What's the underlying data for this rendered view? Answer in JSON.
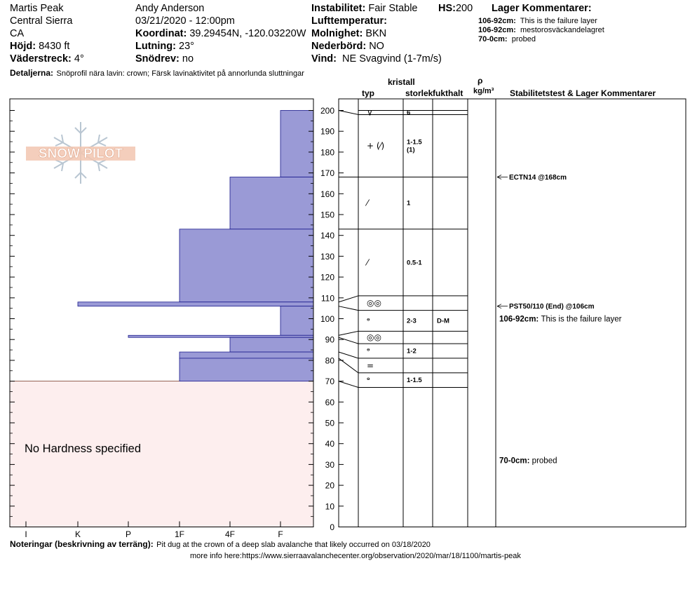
{
  "header": {
    "location": "Martis Peak",
    "range": "Central Sierra",
    "state": "CA",
    "elevation_label": "Höjd:",
    "elevation_value": "8430 ft",
    "aspect_label": "Väderstreck:",
    "aspect_value": "4°",
    "details_label": "Detaljerna:",
    "details_value": "Snöprofil nära lavin: crown; Färsk lavinaktivitet på annorlunda sluttningar",
    "observer": "Andy Anderson",
    "datetime": "03/21/2020 - 12:00pm",
    "coord_label": "Koordinat:",
    "coord_value": "39.29454N, -120.03220W",
    "slope_label": "Lutning:",
    "slope_value": "23°",
    "drift_label": "Snödrev:",
    "drift_value": "no",
    "instability_label": "Instabilitet:",
    "instability_value": "Fair Stable",
    "hs_label": "HS:",
    "hs_value": "200",
    "air_temp_label": "Lufttemperatur:",
    "sky_label": "Molnighet:",
    "sky_value": "BKN",
    "precip_label": "Nederbörd:",
    "precip_value": "NO",
    "wind_label": "Vind:",
    "wind_value": "NE Svagvind (1-7m/s)",
    "layer_comments_title": "Lager Kommentarer:",
    "layer_comments": [
      {
        "range": "106-92cm:",
        "text": "This is the failure layer"
      },
      {
        "range": "106-92cm:",
        "text": "mestorosväckandelagret"
      },
      {
        "range": "70-0cm:",
        "text": "probed"
      }
    ]
  },
  "logo_text": "SNOW PILOT",
  "columns": {
    "crystal": "kristall",
    "type": "typ",
    "size": "storlek",
    "moisture": "fukthalt",
    "rho": "ρ",
    "density_unit": "kg/m³",
    "stability": "Stabilitetstest & Lager Kommentarer"
  },
  "no_hardness_text": "No Hardness specified",
  "notes_label": "Noteringar (beskrivning av terräng):",
  "notes_value": "Pit dug at the crown of a deep slab avalanche that likely occurred on 03/18/2020",
  "more_info": "more info here:https://www.sierraavalanchecenter.org/observation/2020/mar/18/1100/martis-peak",
  "colors": {
    "hardness_fill": "#9a9ad6",
    "hardness_stroke": "#1a1a8c",
    "no_hardness_fill": "#fdeeee"
  },
  "chart_data": {
    "type": "bar",
    "orientation": "horizontal",
    "y_axis_label": "",
    "ylim": [
      0,
      200
    ],
    "y_ticks": [
      0,
      10,
      20,
      30,
      40,
      50,
      60,
      70,
      80,
      90,
      100,
      110,
      120,
      130,
      140,
      150,
      160,
      170,
      180,
      190,
      200
    ],
    "hardness_scale": [
      "I",
      "K",
      "P",
      "1F",
      "4F",
      "F"
    ],
    "hardness_layers": [
      {
        "top": 200,
        "bottom": 168,
        "hardness": "F"
      },
      {
        "top": 168,
        "bottom": 143,
        "hardness": "4F"
      },
      {
        "top": 143,
        "bottom": 108,
        "hardness": "1F"
      },
      {
        "top": 108,
        "bottom": 106,
        "hardness": "K"
      },
      {
        "top": 106,
        "bottom": 92,
        "hardness": "F"
      },
      {
        "top": 92,
        "bottom": 91,
        "hardness": "P"
      },
      {
        "top": 91,
        "bottom": 84,
        "hardness": "4F"
      },
      {
        "top": 84,
        "bottom": 81,
        "hardness": "1F"
      },
      {
        "top": 81,
        "bottom": 70,
        "hardness": "1F"
      }
    ],
    "no_hardness_range": [
      0,
      70
    ],
    "layer_rows": [
      {
        "top": 200,
        "bottom": 198,
        "left_y": 200,
        "glyph": "∨",
        "size": "6",
        "moisture": ""
      },
      {
        "top": 198,
        "bottom": 168,
        "left_y": 168,
        "glyph": "+ (⁄)",
        "size": "1-1.5\n(1)",
        "moisture": ""
      },
      {
        "top": 168,
        "bottom": 143,
        "left_y": 143,
        "glyph": "⁄",
        "size": "1",
        "moisture": ""
      },
      {
        "top": 143,
        "bottom": 111,
        "left_y": 108,
        "glyph": "⁄",
        "size": "0.5-1",
        "moisture": ""
      },
      {
        "top": 111,
        "bottom": 104,
        "left_y": 106,
        "glyph": "◎◎",
        "size": "",
        "moisture": ""
      },
      {
        "top": 104,
        "bottom": 94,
        "left_y": 92,
        "glyph": "ᶱ",
        "size": "2-3",
        "moisture": "D-M"
      },
      {
        "top": 94,
        "bottom": 88,
        "left_y": 91,
        "glyph": "◎◎",
        "size": "",
        "moisture": ""
      },
      {
        "top": 88,
        "bottom": 81,
        "left_y": 84,
        "glyph": "ᶱ",
        "size": "1-2",
        "moisture": ""
      },
      {
        "top": 81,
        "bottom": 74,
        "left_y": 81,
        "glyph": "=",
        "size": "",
        "moisture": ""
      },
      {
        "top": 74,
        "bottom": 67,
        "left_y": 70,
        "glyph": "ᶱ",
        "size": "1-1.5",
        "moisture": ""
      }
    ],
    "stability_tests": [
      {
        "depth": 168,
        "text": "ECTN14 @168cm"
      },
      {
        "depth": 106,
        "text": "PST50/110 (End) @106cm"
      }
    ],
    "layer_annotations": [
      {
        "depth": 100,
        "range": "106-92cm:",
        "text": "This is the failure layer"
      },
      {
        "depth": 32,
        "range": "70-0cm:",
        "text": "probed"
      }
    ]
  }
}
